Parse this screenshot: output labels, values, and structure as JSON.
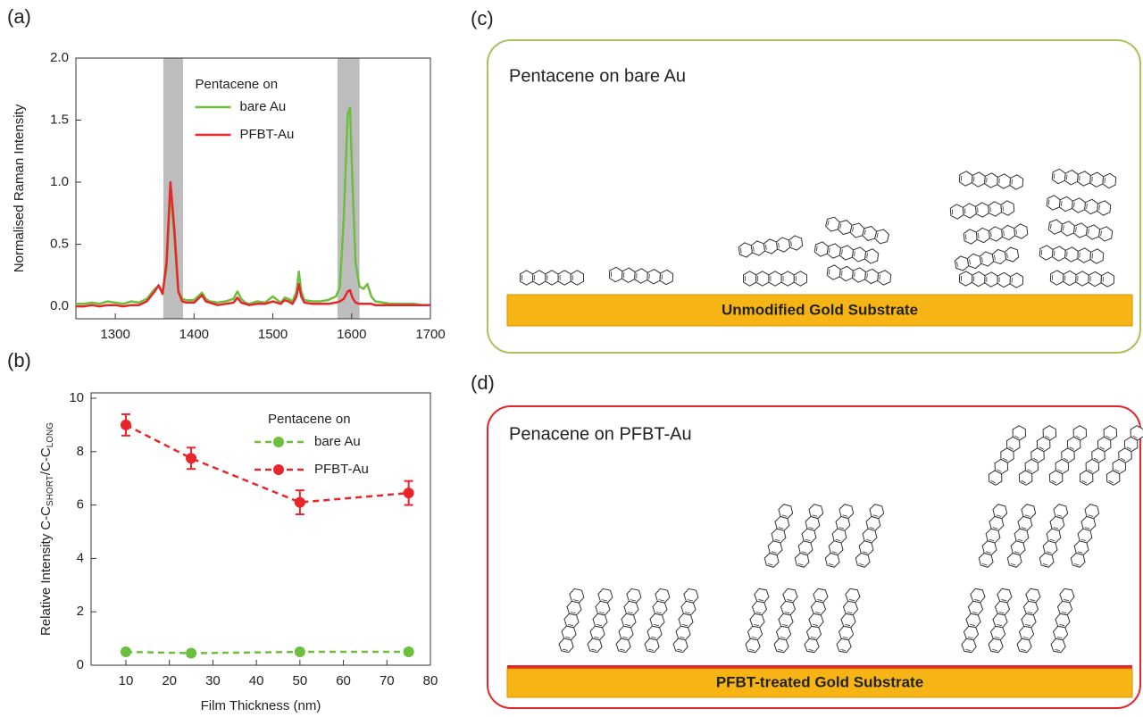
{
  "panel_labels": [
    "(a)",
    "(b)",
    "(c)",
    "(d)"
  ],
  "chart_data": [
    {
      "type": "line",
      "ylabel": "Normalised Raman Intensity",
      "xlim": [
        1250,
        1700
      ],
      "xticks": [
        1300,
        1400,
        1500,
        1600,
        1700
      ],
      "ylim": [
        -0.1,
        2.0
      ],
      "yticks": [
        {
          "value": 0,
          "label": "0.0"
        },
        0.5,
        {
          "value": 1,
          "label": "1.0"
        },
        1.5,
        {
          "value": 2,
          "label": "2.0"
        }
      ],
      "highlights": [
        [
          1361,
          1386
        ],
        [
          1582,
          1610
        ]
      ],
      "highlight_color": "#bdbdbd",
      "legend_title": "Pentacene on",
      "legend": "upper center",
      "x": [
        1250,
        1260,
        1270,
        1280,
        1290,
        1300,
        1310,
        1320,
        1330,
        1340,
        1350,
        1355,
        1360,
        1365,
        1370,
        1375,
        1380,
        1385,
        1390,
        1400,
        1405,
        1410,
        1415,
        1420,
        1430,
        1440,
        1450,
        1455,
        1460,
        1465,
        1470,
        1480,
        1490,
        1500,
        1510,
        1515,
        1520,
        1525,
        1530,
        1533,
        1536,
        1540,
        1550,
        1560,
        1570,
        1580,
        1585,
        1590,
        1595,
        1598,
        1601,
        1605,
        1610,
        1615,
        1620,
        1625,
        1630,
        1640,
        1650,
        1660,
        1670,
        1680,
        1690,
        1700
      ],
      "series": [
        {
          "name": "bare Au",
          "color": "#6cbf3c",
          "values": [
            0.02,
            0.02,
            0.03,
            0.02,
            0.04,
            0.03,
            0.02,
            0.04,
            0.03,
            0.06,
            0.14,
            0.16,
            0.12,
            0.3,
            0.95,
            0.55,
            0.12,
            0.06,
            0.05,
            0.05,
            0.08,
            0.11,
            0.06,
            0.04,
            0.03,
            0.04,
            0.06,
            0.12,
            0.06,
            0.03,
            0.02,
            0.04,
            0.03,
            0.08,
            0.03,
            0.07,
            0.06,
            0.04,
            0.12,
            0.28,
            0.12,
            0.05,
            0.04,
            0.04,
            0.05,
            0.08,
            0.15,
            0.7,
            1.55,
            1.6,
            1.0,
            0.35,
            0.16,
            0.14,
            0.18,
            0.08,
            0.04,
            0.03,
            0.02,
            0.02,
            0.02,
            0.02,
            0.01,
            0.01
          ]
        },
        {
          "name": "PFBT-Au",
          "color": "#e8262a",
          "values": [
            0.0,
            0.0,
            0.01,
            0.0,
            0.01,
            0.01,
            0.0,
            0.01,
            0.01,
            0.04,
            0.12,
            0.17,
            0.1,
            0.35,
            1.0,
            0.62,
            0.12,
            0.04,
            0.03,
            0.03,
            0.06,
            0.09,
            0.04,
            0.03,
            0.01,
            0.02,
            0.03,
            0.07,
            0.03,
            0.02,
            0.01,
            0.02,
            0.02,
            0.04,
            0.02,
            0.05,
            0.04,
            0.02,
            0.08,
            0.18,
            0.08,
            0.03,
            0.02,
            0.02,
            0.02,
            0.03,
            0.04,
            0.06,
            0.12,
            0.13,
            0.07,
            0.03,
            0.02,
            0.02,
            0.02,
            0.02,
            0.01,
            0.01,
            0.01,
            0.01,
            0.01,
            0.01,
            0.01,
            0.01
          ]
        }
      ]
    },
    {
      "type": "line",
      "xlabel": "Film Thickness (nm)",
      "ylabel": [
        "Relative Intensity C-C",
        "SHORT",
        "/C-C",
        "LONG"
      ],
      "xlim": [
        2,
        80
      ],
      "xticks": [
        10,
        20,
        30,
        40,
        50,
        60,
        70,
        80
      ],
      "ylim": [
        0,
        10.2
      ],
      "yticks": [
        0,
        2,
        4,
        6,
        8,
        10
      ],
      "line_style": "dashed",
      "markers": true,
      "legend_title": "Pentacene on",
      "legend": "upper right",
      "x": [
        10,
        25,
        50,
        75
      ],
      "series": [
        {
          "name": "bare Au",
          "color": "#6cbf3c",
          "values": [
            0.5,
            0.45,
            0.5,
            0.5
          ],
          "errors": [
            0.1,
            0.1,
            0.1,
            0.1
          ]
        },
        {
          "name": "PFBT-Au",
          "color": "#e8262a",
          "values": [
            9.0,
            7.75,
            6.1,
            6.45
          ],
          "errors": [
            0.4,
            0.4,
            0.45,
            0.45
          ]
        }
      ]
    }
  ],
  "diagrams": [
    {
      "title": "Pentacene on bare Au",
      "substrate": "Unmodified Gold Substrate"
    },
    {
      "title": "Penacene on PFBT-Au",
      "substrate": "PFBT-treated Gold Substrate"
    }
  ]
}
